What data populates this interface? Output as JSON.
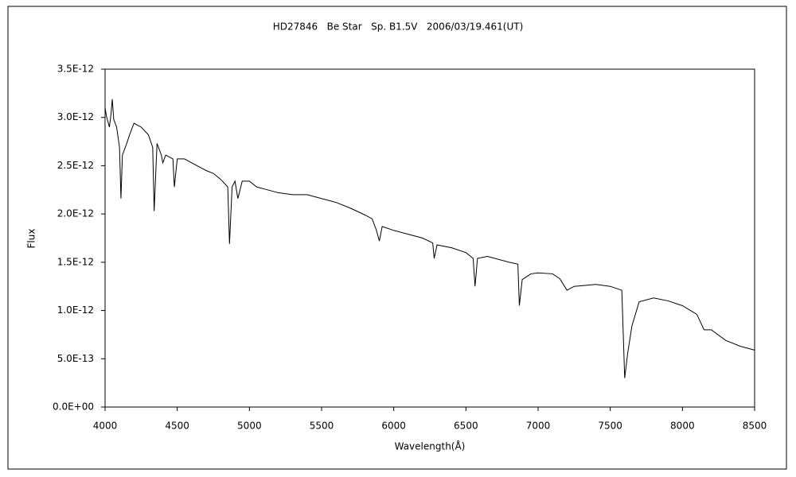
{
  "chart_data": {
    "type": "line",
    "title": "HD27846   Be Star   Sp. B1.5V   2006/03/19.461(UT)",
    "x_label": "Wavelength(Å)",
    "y_label": "Flux",
    "xlim": [
      4000,
      8500
    ],
    "xticks": [
      4000,
      4500,
      5000,
      5500,
      6000,
      6500,
      7000,
      7500,
      8000,
      8500
    ],
    "ylim": [
      0,
      3.5e-12
    ],
    "yticks": [
      {
        "value": 0,
        "label": "0.0E+00"
      },
      {
        "value": 5e-13,
        "label": "5.0E-13"
      },
      {
        "value": 1e-12,
        "label": "1.0E-12"
      },
      {
        "value": 1.5e-12,
        "label": "1.5E-12"
      },
      {
        "value": 2e-12,
        "label": "2.0E-12"
      },
      {
        "value": 2.5e-12,
        "label": "2.5E-12"
      },
      {
        "value": 3e-12,
        "label": "3.0E-12"
      },
      {
        "value": 3.5e-12,
        "label": "3.5E-12"
      }
    ],
    "grid": false,
    "series": [
      {
        "name": "HD27846",
        "color": "#000000",
        "x": [
          4000,
          4010,
          4030,
          4040,
          4050,
          4060,
          4080,
          4100,
          4110,
          4120,
          4150,
          4170,
          4200,
          4250,
          4300,
          4330,
          4340,
          4360,
          4390,
          4400,
          4420,
          4470,
          4480,
          4500,
          4550,
          4600,
          4650,
          4700,
          4750,
          4800,
          4850,
          4862,
          4880,
          4900,
          4920,
          4950,
          5000,
          5050,
          5100,
          5200,
          5300,
          5400,
          5500,
          5600,
          5700,
          5800,
          5850,
          5880,
          5900,
          5920,
          6000,
          6100,
          6200,
          6270,
          6280,
          6300,
          6400,
          6500,
          6550,
          6563,
          6580,
          6650,
          6700,
          6800,
          6860,
          6870,
          6890,
          6950,
          7000,
          7100,
          7150,
          7200,
          7250,
          7400,
          7500,
          7580,
          7600,
          7620,
          7650,
          7700,
          7800,
          7900,
          8000,
          8100,
          8150,
          8200,
          8300,
          8400,
          8500
        ],
        "values": [
          3.1e-12,
          3.01e-12,
          2.9e-12,
          3.02e-12,
          3.19e-12,
          2.98e-12,
          2.9e-12,
          2.69e-12,
          2.16e-12,
          2.61e-12,
          2.73e-12,
          2.82e-12,
          2.94e-12,
          2.9e-12,
          2.82e-12,
          2.69e-12,
          2.03e-12,
          2.73e-12,
          2.61e-12,
          2.53e-12,
          2.61e-12,
          2.57e-12,
          2.28e-12,
          2.57e-12,
          2.57e-12,
          2.53e-12,
          2.49e-12,
          2.45e-12,
          2.42e-12,
          2.36e-12,
          2.28e-12,
          1.69e-12,
          2.28e-12,
          2.34e-12,
          2.16e-12,
          2.34e-12,
          2.34e-12,
          2.28e-12,
          2.26e-12,
          2.22e-12,
          2.2e-12,
          2.2e-12,
          2.16e-12,
          2.12e-12,
          2.06e-12,
          1.99e-12,
          1.95e-12,
          1.83e-12,
          1.72e-12,
          1.87e-12,
          1.83e-12,
          1.79e-12,
          1.75e-12,
          1.7e-12,
          1.54e-12,
          1.68e-12,
          1.65e-12,
          1.6e-12,
          1.54e-12,
          1.25e-12,
          1.54e-12,
          1.56e-12,
          1.54e-12,
          1.5e-12,
          1.48e-12,
          1.05e-12,
          1.32e-12,
          1.38e-12,
          1.39e-12,
          1.38e-12,
          1.33e-12,
          1.21e-12,
          1.25e-12,
          1.27e-12,
          1.25e-12,
          1.21e-12,
          3e-13,
          5.5e-13,
          8.4e-13,
          1.09e-12,
          1.13e-12,
          1.1e-12,
          1.05e-12,
          9.6e-13,
          8e-13,
          8e-13,
          6.9e-13,
          6.3e-13,
          5.9e-13
        ]
      }
    ]
  }
}
